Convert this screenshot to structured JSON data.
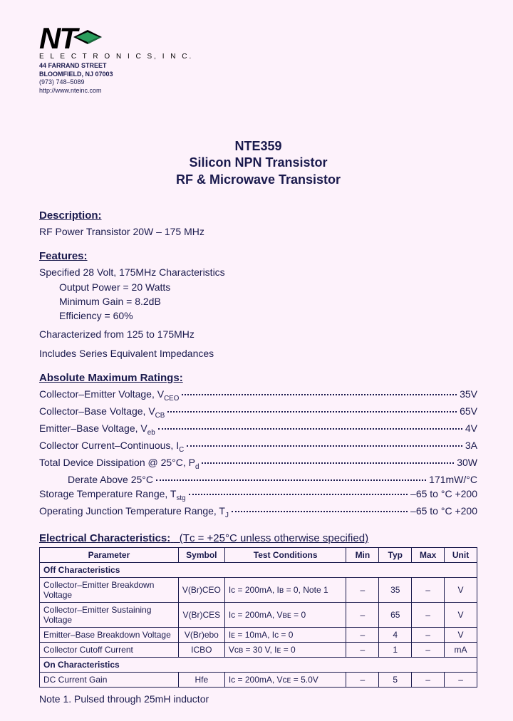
{
  "company": {
    "logo_text": "NT",
    "name_line": "E L E C T R O N I C S,  I N C.",
    "addr1": "44 FARRAND STREET",
    "addr2": "BLOOMFIELD,  NJ  07003",
    "phone": "(973) 748–5089",
    "url": "http://www.nteinc.com"
  },
  "title": {
    "l1": "NTE359",
    "l2": "Silicon NPN Transistor",
    "l3": "RF & Microwave Transistor"
  },
  "description": {
    "head": "Description:",
    "text": "RF Power Transistor 20W – 175 MHz"
  },
  "features": {
    "head": "Features:",
    "f1": "Specified 28 Volt, 175MHz Characteristics",
    "f1a": "Output Power = 20 Watts",
    "f1b": "Minimum Gain = 8.2dB",
    "f1c": "Efficiency = 60%",
    "f2": "Characterized from 125 to 175MHz",
    "f3": "Includes Series Equivalent Impedances"
  },
  "ratings": {
    "head": "Absolute Maximum Ratings:",
    "items": [
      {
        "label": "Collector–Emitter Voltage, V",
        "sub": "CEO",
        "value": "35V"
      },
      {
        "label": "Collector–Base Voltage, V",
        "sub": "CB",
        "value": "65V"
      },
      {
        "label": "Emitter–Base Voltage, V",
        "sub": "eb",
        "value": "4V"
      },
      {
        "label": "Collector Current–Continuous, I",
        "sub": "C",
        "value": "3A"
      },
      {
        "label": "Total Device Dissipation @ 25°C, P",
        "sub": "d",
        "value": "30W"
      },
      {
        "label": "Derate Above 25°C",
        "sub": "",
        "value": "171mW/°C",
        "indent": true
      },
      {
        "label": "Storage Temperature Range, T",
        "sub": "stg",
        "value": "–65 to °C +200"
      },
      {
        "label": "Operating Junction Temperature Range, T",
        "sub": "J",
        "value": "–65 to °C +200"
      }
    ]
  },
  "elec": {
    "head": "Electrical Characteristics:",
    "cond_note": "(Tᴄ = +25°C unless otherwise specified)",
    "headers": {
      "p": "Parameter",
      "s": "Symbol",
      "tc": "Test Conditions",
      "min": "Min",
      "typ": "Typ",
      "max": "Max",
      "unit": "Unit"
    },
    "off_label": "Off Characteristics",
    "on_label": "On Characteristics",
    "off_rows": [
      {
        "p": "Collector–Emitter Breakdown Voltage",
        "s": "V(Br)CEO",
        "tc": "Iᴄ = 200mA, Iʙ = 0, Note 1",
        "min": "–",
        "typ": "35",
        "max": "–",
        "unit": "V"
      },
      {
        "p": "Collector–Emitter Sustaining Voltage",
        "s": "V(Br)CES",
        "tc": "Iᴄ = 200mA, Vʙᴇ = 0",
        "min": "–",
        "typ": "65",
        "max": "–",
        "unit": "V"
      },
      {
        "p": "Emitter–Base Breakdown Voltage",
        "s": "V(Br)ebo",
        "tc": "Iᴇ = 10mA, Iᴄ = 0",
        "min": "–",
        "typ": "4",
        "max": "–",
        "unit": "V"
      },
      {
        "p": "Collector Cutoff Current",
        "s": "ICBO",
        "tc": "Vᴄʙ = 30 V, Iᴇ = 0",
        "min": "–",
        "typ": "1",
        "max": "–",
        "unit": "mA"
      }
    ],
    "on_rows": [
      {
        "p": "DC Current Gain",
        "s": "Hfe",
        "tc": "Iᴄ = 200mA, Vᴄᴇ = 5.0V",
        "min": "–",
        "typ": "5",
        "max": "–",
        "unit": "–"
      }
    ]
  },
  "note1": "Note  1. Pulsed through 25mH inductor",
  "colors": {
    "bg": "#fdf2fb",
    "ink": "#1a1a4d",
    "logo_green": "#2a9d5c"
  }
}
